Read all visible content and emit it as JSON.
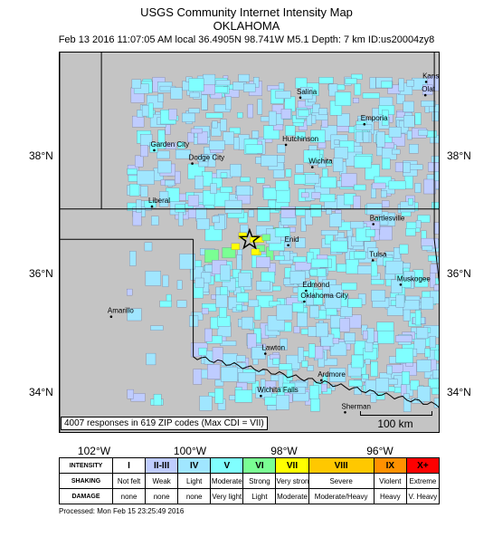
{
  "title": "USGS Community Internet Intensity Map",
  "subtitle": "OKLAHOMA",
  "event_line": "Feb 13 2016 11:07:05 AM local 36.4905N 98.741W M5.1  Depth: 7 km ID:us20004zy8",
  "lat_labels": [
    "38°N",
    "36°N",
    "34°N"
  ],
  "lon_labels": [
    "102°W",
    "100°W",
    "98°W",
    "96°W"
  ],
  "map": {
    "extent": {
      "west": -103.0,
      "east": -94.5,
      "south": 33.3,
      "north": 39.6
    },
    "epicenter": {
      "lat": 36.4905,
      "lon": -98.741
    },
    "responses_text": "4007 responses in 619 ZIP codes (Max CDI = VII)",
    "scale_bar_label": "100 km",
    "colors": {
      "background": "#c4c4c4",
      "cdi_I": "#ffffff",
      "cdi_II_III": "#bfccff",
      "cdi_IV": "#a0e6ff",
      "cdi_V": "#80ffff",
      "cdi_VI": "#7aff93",
      "cdi_VII": "#ffff00",
      "cdi_VIII": "#ffc800",
      "cdi_IX": "#ff9100",
      "cdi_X": "#ff0000"
    },
    "cities": [
      {
        "name": "Salina",
        "lat": 38.84,
        "lon": -97.61
      },
      {
        "name": "Emporia",
        "lat": 38.4,
        "lon": -96.18
      },
      {
        "name": "Kansas",
        "lat": 39.1,
        "lon": -94.8
      },
      {
        "name": "Olat",
        "lat": 38.88,
        "lon": -94.82
      },
      {
        "name": "Hutchinson",
        "lat": 38.06,
        "lon": -97.93
      },
      {
        "name": "Garden City",
        "lat": 37.97,
        "lon": -100.87
      },
      {
        "name": "Dodge City",
        "lat": 37.75,
        "lon": -100.02
      },
      {
        "name": "Wichita",
        "lat": 37.69,
        "lon": -97.34
      },
      {
        "name": "Liberal",
        "lat": 37.04,
        "lon": -100.92
      },
      {
        "name": "Bartlesville",
        "lat": 36.75,
        "lon": -95.98
      },
      {
        "name": "Enid",
        "lat": 36.4,
        "lon": -97.88
      },
      {
        "name": "Tulsa",
        "lat": 36.15,
        "lon": -95.99
      },
      {
        "name": "Edmond",
        "lat": 35.65,
        "lon": -97.48
      },
      {
        "name": "Muskogee",
        "lat": 35.75,
        "lon": -95.37
      },
      {
        "name": "Oklahoma City",
        "lat": 35.47,
        "lon": -97.52
      },
      {
        "name": "Amarillo",
        "lat": 35.22,
        "lon": -101.83
      },
      {
        "name": "Lawton",
        "lat": 34.61,
        "lon": -98.39
      },
      {
        "name": "Ardmore",
        "lat": 34.17,
        "lon": -97.14
      },
      {
        "name": "Wichita Falls",
        "lat": 33.91,
        "lon": -98.49
      },
      {
        "name": "Sherman",
        "lat": 33.64,
        "lon": -96.61
      }
    ]
  },
  "legend": {
    "row_headers": [
      "INTENSITY",
      "SHAKING",
      "DAMAGE"
    ],
    "columns": [
      {
        "intensity": "I",
        "shaking": "Not felt",
        "damage": "none",
        "color": "#ffffff",
        "span": 1
      },
      {
        "intensity": "II-III",
        "shaking": "Weak",
        "damage": "none",
        "color": "#bfccff",
        "span": 1
      },
      {
        "intensity": "IV",
        "shaking": "Light",
        "damage": "none",
        "color": "#a0e6ff",
        "span": 1
      },
      {
        "intensity": "V",
        "shaking": "Moderate",
        "damage": "Very light",
        "color": "#80ffff",
        "span": 1
      },
      {
        "intensity": "VI",
        "shaking": "Strong",
        "damage": "Light",
        "color": "#7aff93",
        "span": 1
      },
      {
        "intensity": "VII",
        "shaking": "Very strong",
        "damage": "Moderate",
        "color": "#ffff00",
        "span": 1
      },
      {
        "intensity": "VIII",
        "shaking": "Severe",
        "damage": "Moderate/Heavy",
        "color": "#ffc800",
        "span": 2
      },
      {
        "intensity": "IX",
        "shaking": "Violent",
        "damage": "Heavy",
        "color": "#ff9100",
        "span": 1
      },
      {
        "intensity": "X+",
        "shaking": "Extreme",
        "damage": "V. Heavy",
        "color": "#ff0000",
        "span": 1
      }
    ]
  },
  "processed": "Processed: Mon Feb 15 23:25:49 2016"
}
